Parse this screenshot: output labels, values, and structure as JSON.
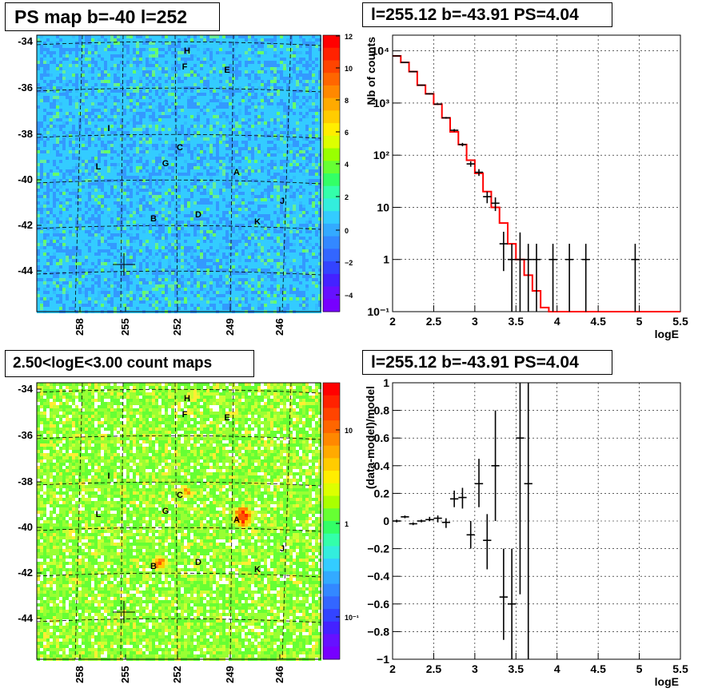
{
  "titles": {
    "top_left": "PS map b=-40 l=252",
    "top_right": "l=255.12 b=-43.91 PS=4.04",
    "bottom_left": "2.50<logE<3.00 count maps",
    "bottom_right": "l=255.12 b=-43.91 PS=4.04"
  },
  "chart_data": [
    {
      "type": "heatmap",
      "title": "PS map b=-40 l=252",
      "yticks": [
        "-34",
        "-36",
        "-38",
        "-40",
        "-42",
        "-44"
      ],
      "xticks": [
        "258",
        "255",
        "252",
        "249",
        "246"
      ],
      "colorbar": {
        "scale": "linear",
        "range": [
          -5,
          12
        ],
        "ticks": [
          "12",
          "10",
          "8",
          "6",
          "4",
          "2",
          "0",
          "−2",
          "−4"
        ]
      },
      "sources": [
        "H",
        "F",
        "E",
        "I",
        "C",
        "L",
        "G",
        "A",
        "J",
        "B",
        "D",
        "K"
      ],
      "colors": {
        "background": "#33ccff",
        "warm_spots": "#66ff66",
        "cold_spots": "#3399ff"
      }
    },
    {
      "type": "line",
      "title": "l=255.12 b=-43.91 PS=4.04",
      "xlabel": "logE",
      "ylabel": "Nb of counts",
      "xlim": [
        2,
        5.5
      ],
      "ylim": [
        0.1,
        20000
      ],
      "yscale": "log",
      "xticks": [
        "2",
        "2.5",
        "3",
        "3.5",
        "4",
        "4.5",
        "5",
        "5.5"
      ],
      "yticks": [
        "10⁻¹",
        "1",
        "10",
        "10²",
        "10³",
        "10⁴"
      ],
      "grid": true,
      "model": {
        "color": "#ff0000",
        "edges": [
          2.0,
          2.1,
          2.2,
          2.3,
          2.4,
          2.5,
          2.6,
          2.7,
          2.8,
          2.9,
          3.0,
          3.1,
          3.2,
          3.3,
          3.4,
          3.5,
          3.6,
          3.7,
          3.8,
          3.9,
          4.0,
          4.1,
          4.2,
          4.3,
          4.4,
          4.5,
          4.6,
          4.7,
          4.8,
          4.9,
          5.0,
          5.1,
          5.2,
          5.3,
          5.4,
          5.5
        ],
        "values": [
          8000,
          6000,
          4000,
          2200,
          1500,
          950,
          520,
          280,
          160,
          80,
          45,
          20,
          10,
          5,
          2,
          1,
          0.5,
          0.25,
          0.12,
          0.07,
          0.05,
          0.05,
          0.05,
          0.05,
          0.05,
          0.05,
          0.05,
          0.05,
          0.05,
          0.05,
          0.05,
          0.05,
          0.05,
          0.05,
          0.05
        ]
      },
      "data": {
        "color": "#000000",
        "points": [
          {
            "x": 2.05,
            "y": 8000,
            "lo": 7900,
            "hi": 8100
          },
          {
            "x": 2.15,
            "y": 6000,
            "lo": 5900,
            "hi": 6100
          },
          {
            "x": 2.25,
            "y": 4000,
            "lo": 3900,
            "hi": 4100
          },
          {
            "x": 2.35,
            "y": 2200,
            "lo": 2150,
            "hi": 2250
          },
          {
            "x": 2.45,
            "y": 1500,
            "lo": 1460,
            "hi": 1540
          },
          {
            "x": 2.55,
            "y": 950,
            "lo": 920,
            "hi": 980
          },
          {
            "x": 2.65,
            "y": 520,
            "lo": 500,
            "hi": 540
          },
          {
            "x": 2.75,
            "y": 300,
            "lo": 283,
            "hi": 317
          },
          {
            "x": 2.85,
            "y": 160,
            "lo": 148,
            "hi": 172
          },
          {
            "x": 2.95,
            "y": 68,
            "lo": 60,
            "hi": 76
          },
          {
            "x": 3.05,
            "y": 47,
            "lo": 40,
            "hi": 54
          },
          {
            "x": 3.15,
            "y": 16,
            "lo": 12,
            "hi": 20
          },
          {
            "x": 3.25,
            "y": 12,
            "lo": 8.5,
            "hi": 15.5
          },
          {
            "x": 3.35,
            "y": 2,
            "lo": 0.6,
            "hi": 3.4
          },
          {
            "x": 3.45,
            "y": 1,
            "lo": 0.1,
            "hi": 2
          },
          {
            "x": 3.55,
            "y": 1,
            "lo": 0.1,
            "hi": 3.3
          },
          {
            "x": 3.65,
            "y": 1,
            "lo": 0.1,
            "hi": 2
          },
          {
            "x": 3.75,
            "y": 1,
            "lo": 0.1,
            "hi": 2
          },
          {
            "x": 3.95,
            "y": 1,
            "lo": 0.1,
            "hi": 2
          },
          {
            "x": 4.15,
            "y": 1,
            "lo": 0.1,
            "hi": 2
          },
          {
            "x": 4.35,
            "y": 1,
            "lo": 0.1,
            "hi": 2
          },
          {
            "x": 4.95,
            "y": 1,
            "lo": 0.1,
            "hi": 2
          }
        ]
      }
    },
    {
      "type": "heatmap",
      "title": "2.50<logE<3.00 count maps",
      "yticks": [
        "-34",
        "-36",
        "-38",
        "-40",
        "-42",
        "-44"
      ],
      "xticks": [
        "258",
        "255",
        "252",
        "249",
        "246"
      ],
      "colorbar": {
        "scale": "log",
        "ticks": [
          "10",
          "1",
          "10⁻¹"
        ]
      },
      "sources": [
        "H",
        "F",
        "E",
        "I",
        "C",
        "L",
        "G",
        "A",
        "J",
        "B",
        "D",
        "K"
      ],
      "bright_sources": [
        "A",
        "B",
        "C"
      ],
      "colors": {
        "background": "#66ff33",
        "mid": "#ccff33",
        "hot": "#ff3300"
      }
    },
    {
      "type": "scatter",
      "title": "l=255.12 b=-43.91 PS=4.04",
      "xlabel": "logE",
      "ylabel": "(data-model)/model",
      "xlim": [
        2,
        5.5
      ],
      "ylim": [
        -1,
        1
      ],
      "xticks": [
        "2",
        "2.5",
        "3",
        "3.5",
        "4",
        "4.5",
        "5",
        "5.5"
      ],
      "yticks": [
        "1",
        "0.8",
        "0.6",
        "0.4",
        "0.2",
        "0",
        "−0.2",
        "−0.4",
        "−0.6",
        "−0.8",
        "−1"
      ],
      "grid": true,
      "points": [
        {
          "x": 2.05,
          "y": 0.0,
          "lo": -0.01,
          "hi": 0.01
        },
        {
          "x": 2.15,
          "y": 0.03,
          "lo": 0.02,
          "hi": 0.04
        },
        {
          "x": 2.25,
          "y": -0.02,
          "lo": -0.03,
          "hi": -0.01
        },
        {
          "x": 2.35,
          "y": 0.0,
          "lo": -0.01,
          "hi": 0.01
        },
        {
          "x": 2.45,
          "y": 0.01,
          "lo": 0.0,
          "hi": 0.03
        },
        {
          "x": 2.55,
          "y": 0.02,
          "lo": -0.01,
          "hi": 0.04
        },
        {
          "x": 2.65,
          "y": -0.01,
          "lo": -0.05,
          "hi": 0.02
        },
        {
          "x": 2.75,
          "y": 0.16,
          "lo": 0.1,
          "hi": 0.22
        },
        {
          "x": 2.85,
          "y": 0.17,
          "lo": 0.09,
          "hi": 0.24
        },
        {
          "x": 2.95,
          "y": -0.1,
          "lo": -0.2,
          "hi": 0.0
        },
        {
          "x": 3.05,
          "y": 0.27,
          "lo": 0.1,
          "hi": 0.45
        },
        {
          "x": 3.15,
          "y": -0.14,
          "lo": -0.35,
          "hi": 0.05
        },
        {
          "x": 3.25,
          "y": 0.4,
          "lo": 0.0,
          "hi": 0.8
        },
        {
          "x": 3.35,
          "y": -0.55,
          "lo": -0.86,
          "hi": -0.2
        },
        {
          "x": 3.45,
          "y": -0.6,
          "lo": -1.0,
          "hi": -0.2
        },
        {
          "x": 3.55,
          "y": 0.6,
          "lo": -0.53,
          "hi": 1.0
        },
        {
          "x": 3.65,
          "y": 0.27,
          "lo": -1.0,
          "hi": 1.0
        }
      ]
    }
  ]
}
